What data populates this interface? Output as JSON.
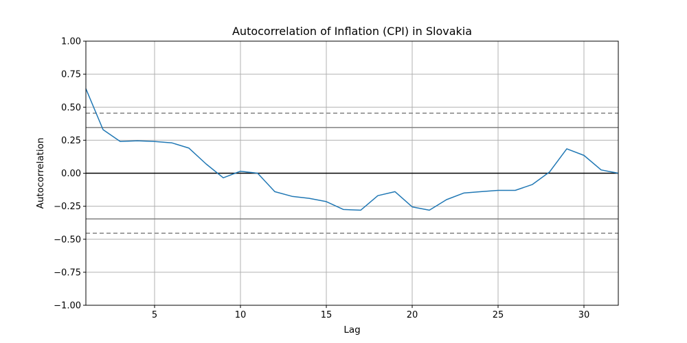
{
  "chart_data": {
    "type": "line",
    "title": "Autocorrelation of Inflation (CPI) in Slovakia",
    "xlabel": "Lag",
    "ylabel": "Autocorrelation",
    "xlim": [
      1,
      32
    ],
    "ylim": [
      -1.0,
      1.0
    ],
    "xticks": [
      5,
      10,
      15,
      20,
      25,
      30
    ],
    "yticks": [
      -1.0,
      -0.75,
      -0.5,
      -0.25,
      0.0,
      0.25,
      0.5,
      0.75,
      1.0
    ],
    "xtick_labels": [
      "5",
      "10",
      "15",
      "20",
      "25",
      "30"
    ],
    "ytick_labels": [
      "−1.00",
      "−0.75",
      "−0.50",
      "−0.25",
      "0.00",
      "0.25",
      "0.50",
      "0.75",
      "1.00"
    ],
    "grid": true,
    "series": [
      {
        "color": "#1f77b4",
        "x": [
          1,
          2,
          3,
          4,
          5,
          6,
          7,
          8,
          9,
          10,
          11,
          12,
          13,
          14,
          15,
          16,
          17,
          18,
          19,
          20,
          21,
          22,
          23,
          24,
          25,
          26,
          27,
          28,
          29,
          30,
          31,
          32
        ],
        "values": [
          0.64,
          0.33,
          0.24,
          0.245,
          0.24,
          0.23,
          0.19,
          0.07,
          -0.035,
          0.015,
          0.0,
          -0.14,
          -0.175,
          -0.19,
          -0.215,
          -0.275,
          -0.28,
          -0.17,
          -0.14,
          -0.255,
          -0.28,
          -0.2,
          -0.15,
          -0.14,
          -0.13,
          -0.13,
          -0.085,
          0.01,
          0.185,
          0.135,
          0.025,
          0.0
        ]
      }
    ],
    "reference_lines": [
      {
        "y": 0.4548,
        "style": "dashed",
        "color": "#808080"
      },
      {
        "y": 0.3461,
        "style": "solid",
        "color": "#808080"
      },
      {
        "y": 0.0,
        "style": "solid",
        "color": "#000000"
      },
      {
        "y": -0.3461,
        "style": "solid",
        "color": "#808080"
      },
      {
        "y": -0.4548,
        "style": "dashed",
        "color": "#808080"
      }
    ]
  }
}
